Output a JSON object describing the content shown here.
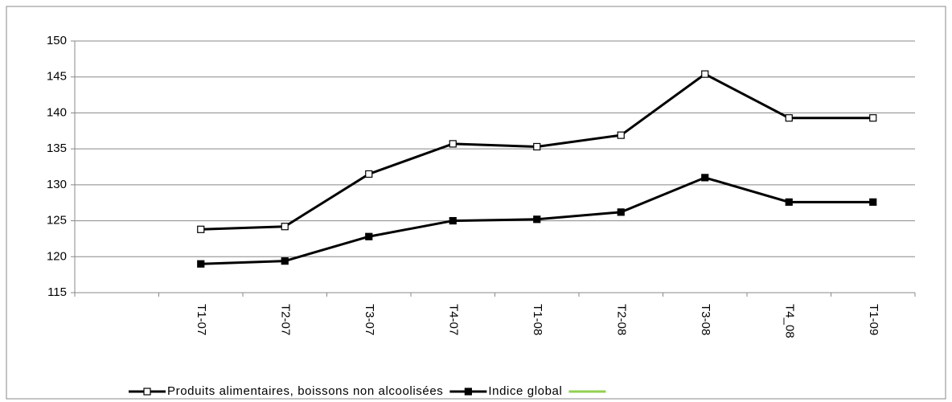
{
  "chart_data": {
    "type": "line",
    "categories": [
      null,
      "T1-07",
      "T2-07",
      "T3-07",
      "T4-07",
      "T1-08",
      "T2-08",
      "T3-08",
      "T4_08",
      "T1-09"
    ],
    "series": [
      {
        "name": "Produits alimentaires, boissons non alcoolisées",
        "color": "#000000",
        "marker_fill": "#ffffff",
        "values": [
          null,
          123.8,
          124.2,
          131.5,
          135.7,
          135.3,
          136.9,
          145.4,
          139.3,
          139.3
        ]
      },
      {
        "name": "Indice global",
        "color": "#000000",
        "marker_fill": "#000000",
        "values": [
          null,
          119,
          119.4,
          122.8,
          125,
          125.2,
          126.2,
          131,
          127.6,
          127.6
        ]
      },
      {
        "color": "#92d050",
        "values": [
          null,
          null,
          null,
          null,
          null,
          null,
          null,
          null,
          null,
          null
        ]
      }
    ],
    "ylim": [
      115,
      150
    ],
    "yticks": [
      115,
      120,
      125,
      130,
      135,
      140,
      145,
      150
    ],
    "grid": true,
    "legend": "bottom"
  }
}
